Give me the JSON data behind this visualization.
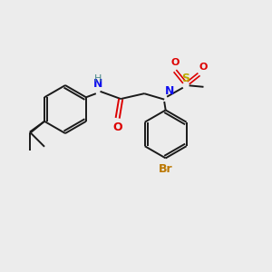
{
  "bg_color": "#ececec",
  "bond_color": "#1a1a1a",
  "bond_lw": 1.4,
  "N_color": "#1010ee",
  "H_color": "#4a8888",
  "O_color": "#dd0000",
  "S_color": "#bbaa00",
  "Br_color": "#bb7700",
  "font_size": 9,
  "font_size_small": 8,
  "figsize": [
    3.0,
    3.0
  ],
  "dpi": 100,
  "xlim": [
    0,
    10
  ],
  "ylim": [
    0,
    10
  ]
}
